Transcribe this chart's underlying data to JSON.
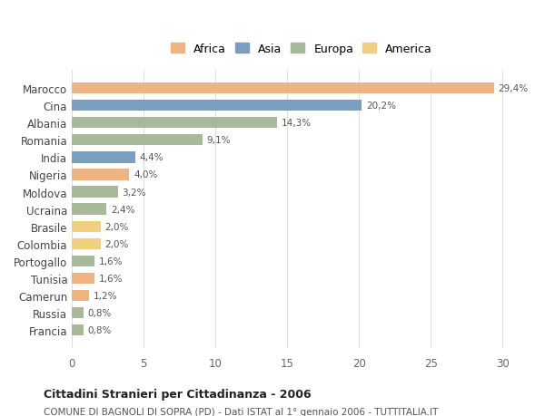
{
  "countries": [
    "Marocco",
    "Cina",
    "Albania",
    "Romania",
    "India",
    "Nigeria",
    "Moldova",
    "Ucraina",
    "Brasile",
    "Colombia",
    "Portogallo",
    "Tunisia",
    "Camerun",
    "Russia",
    "Francia"
  ],
  "values": [
    29.4,
    20.2,
    14.3,
    9.1,
    4.4,
    4.0,
    3.2,
    2.4,
    2.0,
    2.0,
    1.6,
    1.6,
    1.2,
    0.8,
    0.8
  ],
  "labels": [
    "29,4%",
    "20,2%",
    "14,3%",
    "9,1%",
    "4,4%",
    "4,0%",
    "3,2%",
    "2,4%",
    "2,0%",
    "2,0%",
    "1,6%",
    "1,6%",
    "1,2%",
    "0,8%",
    "0,8%"
  ],
  "continents": [
    "Africa",
    "Asia",
    "Europa",
    "Europa",
    "Asia",
    "Africa",
    "Europa",
    "Europa",
    "America",
    "America",
    "Europa",
    "Africa",
    "Africa",
    "Europa",
    "Europa"
  ],
  "colors": {
    "Africa": "#F0B482",
    "Asia": "#7A9EC0",
    "Europa": "#A8B89A",
    "America": "#F0D080"
  },
  "legend_order": [
    "Africa",
    "Asia",
    "Europa",
    "America"
  ],
  "legend_colors": [
    "#F0B482",
    "#7A9EC0",
    "#A8B89A",
    "#F0D080"
  ],
  "title": "Cittadini Stranieri per Cittadinanza - 2006",
  "subtitle": "COMUNE DI BAGNOLI DI SOPRA (PD) - Dati ISTAT al 1° gennaio 2006 - TUTTITALIA.IT",
  "xlim": [
    0,
    32
  ],
  "xticks": [
    0,
    5,
    10,
    15,
    20,
    25,
    30
  ],
  "background_color": "#ffffff",
  "bar_height": 0.65
}
